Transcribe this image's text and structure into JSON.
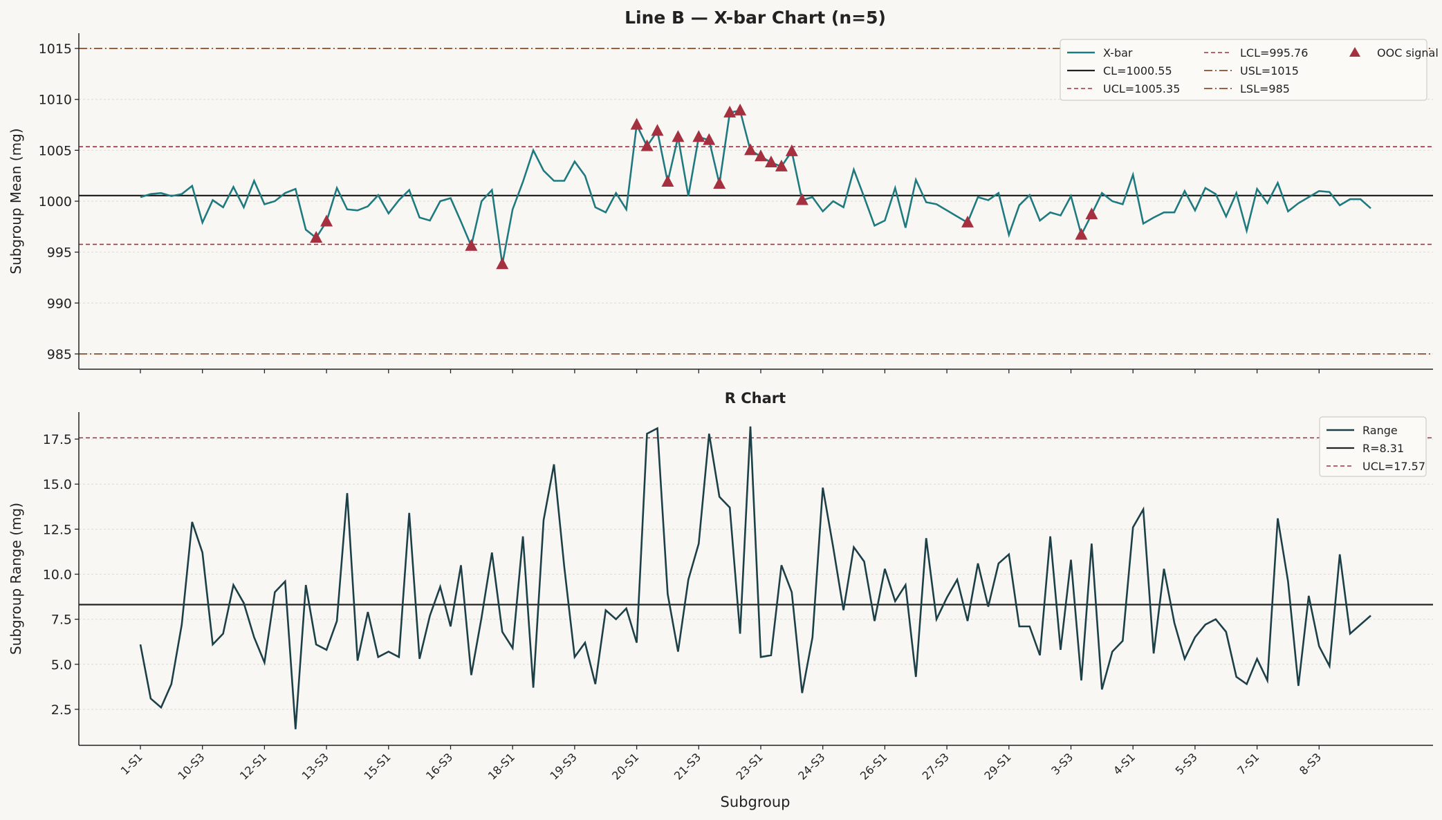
{
  "figure": {
    "title": "Line B — X-bar Chart  (n=5)",
    "xlabel": "Subgroup",
    "x_tick_labels": [
      "1-S1",
      "10-S3",
      "12-S1",
      "13-S3",
      "15-S1",
      "16-S3",
      "18-S1",
      "19-S3",
      "20-S1",
      "21-S3",
      "23-S1",
      "24-S3",
      "26-S1",
      "27-S3",
      "29-S1",
      "3-S3",
      "4-S1",
      "5-S3",
      "7-S1",
      "8-S3"
    ]
  },
  "chart_data": [
    {
      "type": "line",
      "ylabel": "Subgroup Mean (mg)",
      "ylim": [
        983.5,
        1016.5
      ],
      "yticks": [
        985,
        990,
        995,
        1000,
        1005,
        1010,
        1015
      ],
      "grid": "horizontal",
      "legend_position": "top-right",
      "legend": [
        "X-bar",
        "CL=1000.55",
        "UCL=1005.35",
        "LCL=995.76",
        "USL=1015",
        "LSL=985",
        "OOC signal"
      ],
      "limits": {
        "CL": 1000.55,
        "UCL": 1005.35,
        "LCL": 995.76,
        "USL": 1015,
        "LSL": 985
      },
      "series": [
        {
          "name": "X-bar",
          "color": "#1f7a80",
          "values": [
            1000.4,
            1000.7,
            1000.8,
            1000.5,
            1000.7,
            1001.5,
            997.9,
            1000.1,
            999.4,
            1001.4,
            999.4,
            1002.0,
            999.7,
            1000.0,
            1000.8,
            1001.2,
            997.2,
            996.4,
            998.0,
            1001.3,
            999.2,
            999.1,
            999.5,
            1000.6,
            998.8,
            1000.1,
            1001.1,
            998.4,
            998.1,
            1000.0,
            1000.3,
            998.0,
            995.6,
            1000.0,
            1001.1,
            993.8,
            999.2,
            1001.9,
            1005.0,
            1003.0,
            1002.0,
            1002.0,
            1003.9,
            1002.5,
            999.4,
            998.9,
            1000.8,
            999.2,
            1007.5,
            1005.4,
            1006.9,
            1001.9,
            1006.3,
            1000.5,
            1006.3,
            1006.0,
            1001.7,
            1008.7,
            1008.9,
            1005.0,
            1004.4,
            1003.8,
            1003.4,
            1004.9,
            1000.1,
            1000.4,
            999.0,
            1000.0,
            999.4,
            1003.1,
            1000.4,
            997.6,
            998.1,
            1001.3,
            997.4,
            1002.1,
            999.9,
            999.7,
            999.1,
            998.5,
            997.9,
            1000.4,
            1000.1,
            1000.8,
            996.7,
            999.6,
            1000.6,
            998.1,
            998.9,
            998.6,
            1000.5,
            996.7,
            998.7,
            1000.8,
            1000.0,
            999.7,
            1002.6,
            997.8,
            998.4,
            998.9,
            998.9,
            1001.0,
            999.1,
            1001.3,
            1000.7,
            998.5,
            1000.8,
            997.1,
            1001.2,
            999.8,
            1001.8,
            999.0,
            999.8,
            1000.4,
            1001.0,
            1000.9,
            999.6,
            1000.2,
            1000.2,
            999.3
          ]
        },
        {
          "name": "OOC signal",
          "color": "#a5303f",
          "points": [
            [
              17,
              996.4
            ],
            [
              18,
              998.0
            ],
            [
              32,
              995.6
            ],
            [
              35,
              993.8
            ],
            [
              48,
              1007.5
            ],
            [
              49,
              1005.4
            ],
            [
              50,
              1006.9
            ],
            [
              51,
              1001.9
            ],
            [
              52,
              1006.3
            ],
            [
              54,
              1006.3
            ],
            [
              55,
              1006.0
            ],
            [
              56,
              1001.7
            ],
            [
              57,
              1008.7
            ],
            [
              58,
              1008.9
            ],
            [
              59,
              1005.0
            ],
            [
              60,
              1004.4
            ],
            [
              61,
              1003.8
            ],
            [
              62,
              1003.4
            ],
            [
              63,
              1004.9
            ],
            [
              64,
              1000.1
            ],
            [
              80,
              997.9
            ],
            [
              91,
              996.7
            ],
            [
              92,
              998.7
            ]
          ]
        }
      ]
    },
    {
      "type": "line",
      "title": "R Chart",
      "ylabel": "Subgroup Range (mg)",
      "ylim": [
        0.5,
        19.0
      ],
      "yticks": [
        2.5,
        5.0,
        7.5,
        10.0,
        12.5,
        15.0,
        17.5
      ],
      "grid": "horizontal",
      "legend_position": "top-right",
      "legend": [
        "Range",
        "R=8.31",
        "UCL=17.57"
      ],
      "limits": {
        "R": 8.31,
        "UCL": 17.57
      },
      "series": [
        {
          "name": "Range",
          "color": "#1d3f47",
          "values": [
            6.1,
            3.1,
            2.6,
            3.9,
            7.2,
            12.9,
            11.2,
            6.1,
            6.7,
            9.4,
            8.4,
            6.5,
            5.1,
            9.0,
            9.6,
            1.4,
            9.4,
            6.1,
            5.8,
            7.4,
            14.5,
            5.2,
            7.9,
            5.4,
            5.7,
            5.4,
            13.4,
            5.3,
            7.7,
            9.3,
            7.1,
            10.5,
            4.4,
            7.6,
            11.2,
            6.8,
            5.9,
            12.1,
            3.7,
            13.0,
            16.1,
            10.4,
            5.4,
            6.2,
            3.9,
            8.0,
            7.5,
            8.1,
            6.2,
            17.8,
            18.1,
            8.9,
            5.7,
            9.7,
            11.7,
            17.8,
            14.3,
            13.7,
            6.7,
            18.2,
            5.4,
            5.5,
            10.5,
            9.0,
            3.4,
            6.5,
            14.8,
            11.5,
            8.0,
            11.5,
            10.7,
            7.4,
            10.3,
            8.5,
            9.4,
            4.3,
            12.0,
            7.5,
            8.7,
            9.7,
            7.4,
            10.6,
            8.2,
            10.6,
            11.1,
            7.1,
            7.1,
            5.5,
            12.1,
            5.8,
            10.8,
            4.1,
            11.7,
            3.6,
            5.7,
            6.3,
            12.6,
            13.6,
            5.6,
            10.3,
            7.3,
            5.3,
            6.5,
            7.2,
            7.5,
            6.8,
            4.3,
            3.9,
            5.3,
            4.1,
            13.1,
            9.6,
            3.8,
            8.8,
            6.0,
            4.9,
            11.1,
            6.7,
            7.2,
            7.7
          ]
        }
      ]
    }
  ],
  "colors": {
    "xbar": "#1f7a80",
    "range": "#1d3f47",
    "center": "#222222",
    "control": "#a5303f",
    "spec": "#8a4a2b",
    "ooc": "#a5303f"
  }
}
